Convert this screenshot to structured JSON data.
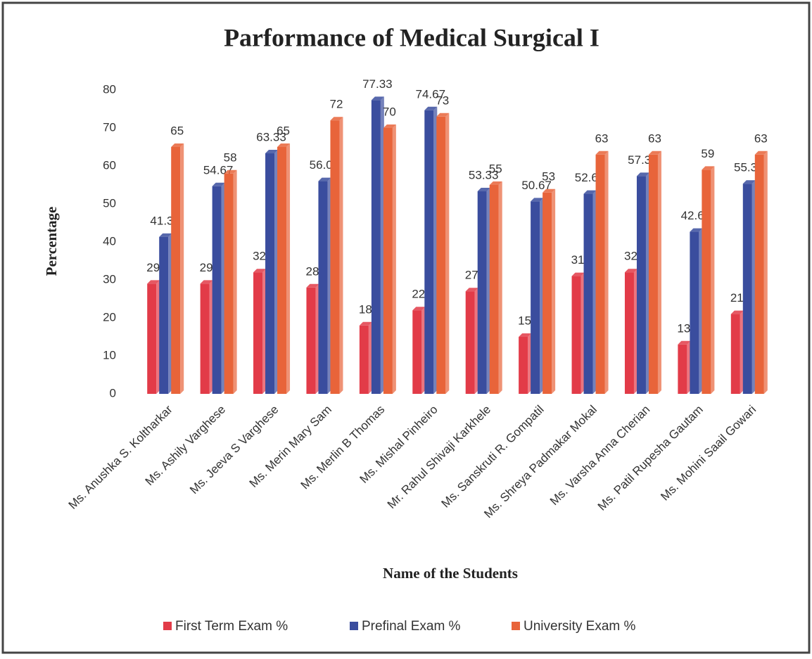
{
  "chart_data": {
    "type": "bar",
    "title": "Parformance of Medical Surgical I",
    "xlabel": "Name of the Students",
    "ylabel": "Percentage",
    "categories": [
      "Ms. Anushka S. Koltharkar",
      "Ms. Ashily Varghese",
      "Ms. Jeeva S Varghese",
      "Ms. Merin Mary Sam",
      "Ms. Merlin B Thomas",
      "Ms. Mishal Pinheiro",
      "Mr. Rahul Shivaji Karkhele",
      "Ms. Sanskruti R. Gompatil",
      "Ms. Shreya Padmakar Mokal",
      "Ms. Varsha Anna Cherian",
      "Ms. Patil Rupesha Gautam",
      "Ms. Mohini Saail Gowari"
    ],
    "series": [
      {
        "name": "First Term Exam %",
        "color": "#e23b48",
        "values": [
          29,
          29,
          32,
          28,
          18,
          22,
          27,
          15,
          31,
          32,
          13,
          21
        ]
      },
      {
        "name": "Prefinal Exam %",
        "color": "#3a4d9e",
        "values": [
          41.33,
          54.67,
          63.33,
          56.0,
          77.33,
          74.67,
          53.33,
          50.67,
          52.67,
          57.33,
          42.67,
          55.33
        ],
        "value_labels": [
          "41.33",
          "54.67",
          "63.33",
          "56.00",
          "77.33",
          "74.67",
          "53.33",
          "50.67",
          "52.67",
          "57.33",
          "42.67",
          "55.33"
        ]
      },
      {
        "name": "University Exam %",
        "color": "#e8643a",
        "values": [
          65,
          58,
          65,
          72,
          70,
          73,
          55,
          53,
          63,
          63,
          59,
          63
        ]
      }
    ],
    "ylim": [
      0,
      80
    ],
    "yticks": [
      0,
      10,
      20,
      30,
      40,
      50,
      60,
      70,
      80
    ],
    "legend": "bottom"
  }
}
